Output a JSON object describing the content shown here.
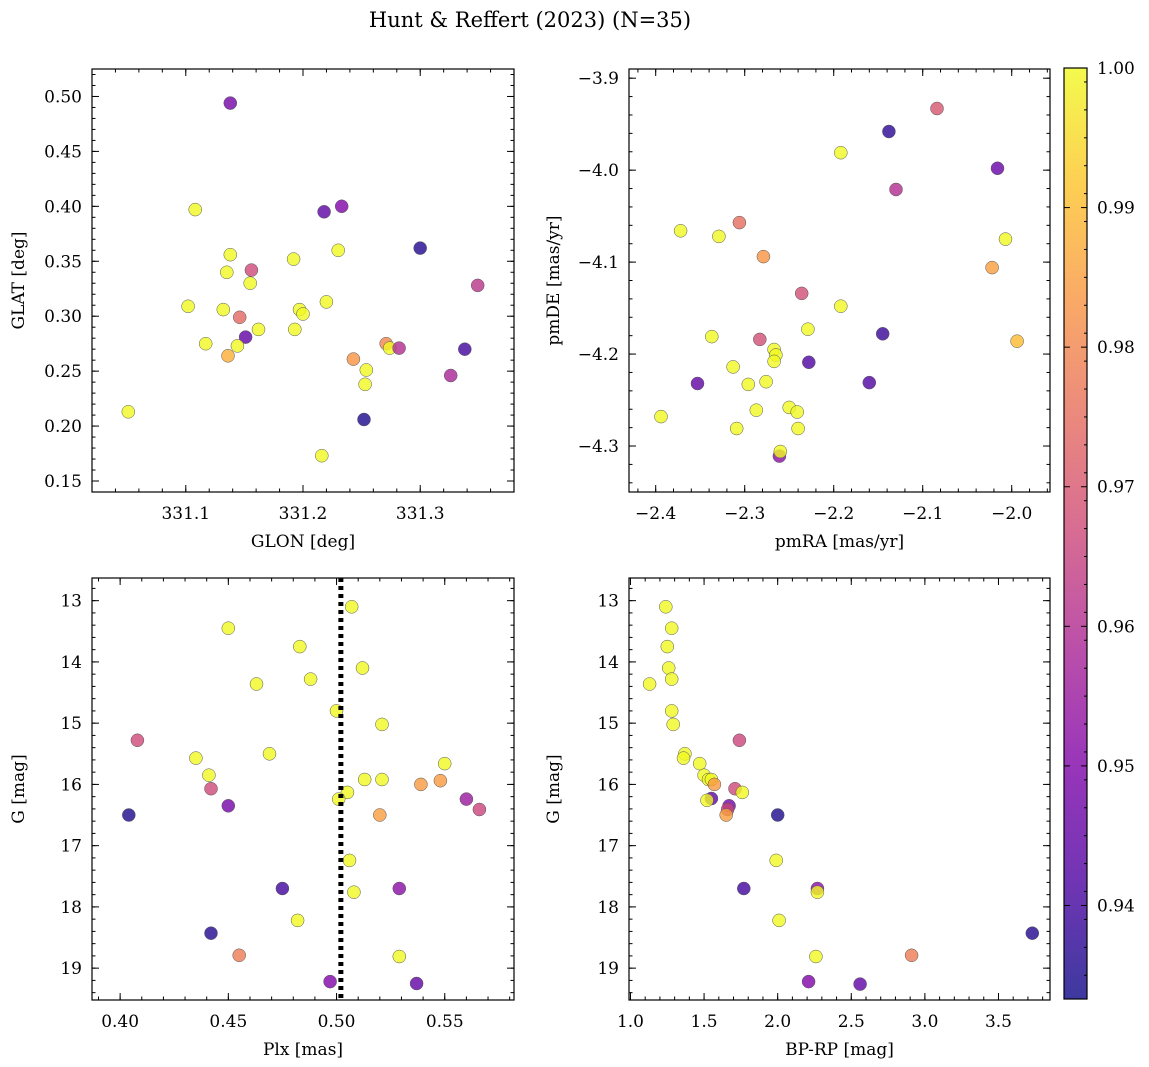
{
  "figure_title": "Hunt & Reffert (2023) (N=35)",
  "colorbar": {
    "range": [
      0.9333,
      1.0
    ],
    "ticks": [
      0.94,
      0.95,
      0.96,
      0.97,
      0.98,
      0.99,
      1.0
    ],
    "tick_labels": [
      "0.94",
      "0.95",
      "0.96",
      "0.97",
      "0.98",
      "0.99",
      "1.00"
    ],
    "colormap": "plasma (alpha 0.8)"
  },
  "chart_data": [
    {
      "type": "scatter",
      "xlabel": "GLON [deg]",
      "ylabel": "GLAT [deg]",
      "xlim": [
        331.02,
        331.38
      ],
      "ylim": [
        0.14,
        0.525
      ],
      "xticks": [
        331.1,
        331.2,
        331.3
      ],
      "xtick_labels": [
        "331.1",
        "331.2",
        "331.3"
      ],
      "yticks": [
        0.15,
        0.2,
        0.25,
        0.3,
        0.35,
        0.4,
        0.45,
        0.5
      ],
      "ytick_labels": [
        "0.15",
        "0.20",
        "0.25",
        "0.30",
        "0.35",
        "0.40",
        "0.45",
        "0.50"
      ],
      "y_inverted": false,
      "points": [
        {
          "x": 331.138,
          "y": 0.494,
          "c": 0.948
        },
        {
          "x": 331.108,
          "y": 0.397,
          "c": 1.0
        },
        {
          "x": 331.218,
          "y": 0.395,
          "c": 0.944
        },
        {
          "x": 331.233,
          "y": 0.4,
          "c": 0.95
        },
        {
          "x": 331.3,
          "y": 0.362,
          "c": 0.936
        },
        {
          "x": 331.138,
          "y": 0.356,
          "c": 1.0
        },
        {
          "x": 331.135,
          "y": 0.34,
          "c": 1.0
        },
        {
          "x": 331.156,
          "y": 0.342,
          "c": 0.967
        },
        {
          "x": 331.192,
          "y": 0.352,
          "c": 1.0
        },
        {
          "x": 331.23,
          "y": 0.36,
          "c": 1.0
        },
        {
          "x": 331.155,
          "y": 0.33,
          "c": 1.0
        },
        {
          "x": 331.349,
          "y": 0.328,
          "c": 0.962
        },
        {
          "x": 331.102,
          "y": 0.309,
          "c": 1.0
        },
        {
          "x": 331.132,
          "y": 0.306,
          "c": 1.0
        },
        {
          "x": 331.146,
          "y": 0.299,
          "c": 0.974
        },
        {
          "x": 331.197,
          "y": 0.306,
          "c": 1.0
        },
        {
          "x": 331.2,
          "y": 0.302,
          "c": 1.0
        },
        {
          "x": 331.22,
          "y": 0.313,
          "c": 1.0
        },
        {
          "x": 331.162,
          "y": 0.288,
          "c": 1.0
        },
        {
          "x": 331.193,
          "y": 0.288,
          "c": 1.0
        },
        {
          "x": 331.151,
          "y": 0.281,
          "c": 0.945
        },
        {
          "x": 331.117,
          "y": 0.275,
          "c": 1.0
        },
        {
          "x": 331.144,
          "y": 0.273,
          "c": 1.0
        },
        {
          "x": 331.136,
          "y": 0.264,
          "c": 0.988
        },
        {
          "x": 331.243,
          "y": 0.261,
          "c": 0.983
        },
        {
          "x": 331.271,
          "y": 0.275,
          "c": 0.98
        },
        {
          "x": 331.274,
          "y": 0.271,
          "c": 1.0
        },
        {
          "x": 331.282,
          "y": 0.271,
          "c": 0.96
        },
        {
          "x": 331.338,
          "y": 0.27,
          "c": 0.94
        },
        {
          "x": 331.254,
          "y": 0.251,
          "c": 1.0
        },
        {
          "x": 331.253,
          "y": 0.238,
          "c": 1.0
        },
        {
          "x": 331.326,
          "y": 0.246,
          "c": 0.958
        },
        {
          "x": 331.051,
          "y": 0.213,
          "c": 1.0
        },
        {
          "x": 331.252,
          "y": 0.206,
          "c": 0.935
        },
        {
          "x": 331.216,
          "y": 0.173,
          "c": 1.0
        }
      ]
    },
    {
      "type": "scatter",
      "xlabel": "pmRA [mas/yr]",
      "ylabel": "pmDE [mas/yr]",
      "xlim": [
        -2.43,
        -1.957
      ],
      "ylim": [
        -4.35,
        -3.89
      ],
      "xticks": [
        -2.4,
        -2.3,
        -2.2,
        -2.1,
        -2.0
      ],
      "xtick_labels": [
        "−2.4",
        "−2.3",
        "−2.2",
        "−2.1",
        "−2.0"
      ],
      "yticks": [
        -4.3,
        -4.2,
        -4.1,
        -4.0,
        -3.9
      ],
      "ytick_labels": [
        "−4.3",
        "−4.2",
        "−4.1",
        "−4.0",
        "−3.9"
      ],
      "y_inverted": false,
      "points": [
        {
          "x": -2.084,
          "y": -3.933,
          "c": 0.97
        },
        {
          "x": -2.138,
          "y": -3.958,
          "c": 0.937
        },
        {
          "x": -2.192,
          "y": -3.981,
          "c": 1.0
        },
        {
          "x": -2.016,
          "y": -3.998,
          "c": 0.946
        },
        {
          "x": -2.13,
          "y": -4.021,
          "c": 0.96
        },
        {
          "x": -2.372,
          "y": -4.066,
          "c": 1.0
        },
        {
          "x": -2.306,
          "y": -4.057,
          "c": 0.975
        },
        {
          "x": -2.329,
          "y": -4.072,
          "c": 1.0
        },
        {
          "x": -2.007,
          "y": -4.075,
          "c": 1.0
        },
        {
          "x": -2.279,
          "y": -4.094,
          "c": 0.983
        },
        {
          "x": -2.022,
          "y": -4.106,
          "c": 0.985
        },
        {
          "x": -2.236,
          "y": -4.134,
          "c": 0.968
        },
        {
          "x": -2.192,
          "y": -4.148,
          "c": 1.0
        },
        {
          "x": -2.229,
          "y": -4.173,
          "c": 1.0
        },
        {
          "x": -2.145,
          "y": -4.178,
          "c": 0.939
        },
        {
          "x": -2.337,
          "y": -4.181,
          "c": 1.0
        },
        {
          "x": -2.283,
          "y": -4.184,
          "c": 0.968
        },
        {
          "x": -1.994,
          "y": -4.186,
          "c": 0.99
        },
        {
          "x": -2.267,
          "y": -4.195,
          "c": 1.0
        },
        {
          "x": -2.265,
          "y": -4.201,
          "c": 1.0
        },
        {
          "x": -2.267,
          "y": -4.208,
          "c": 1.0
        },
        {
          "x": -2.228,
          "y": -4.209,
          "c": 0.942
        },
        {
          "x": -2.313,
          "y": -4.214,
          "c": 1.0
        },
        {
          "x": -2.353,
          "y": -4.232,
          "c": 0.945
        },
        {
          "x": -2.16,
          "y": -4.231,
          "c": 0.942
        },
        {
          "x": -2.296,
          "y": -4.233,
          "c": 1.0
        },
        {
          "x": -2.276,
          "y": -4.23,
          "c": 1.0
        },
        {
          "x": -2.287,
          "y": -4.261,
          "c": 1.0
        },
        {
          "x": -2.25,
          "y": -4.258,
          "c": 1.0
        },
        {
          "x": -2.241,
          "y": -4.263,
          "c": 1.0
        },
        {
          "x": -2.394,
          "y": -4.268,
          "c": 1.0
        },
        {
          "x": -2.309,
          "y": -4.281,
          "c": 1.0
        },
        {
          "x": -2.24,
          "y": -4.281,
          "c": 1.0
        },
        {
          "x": -2.261,
          "y": -4.311,
          "c": 0.952
        },
        {
          "x": -2.26,
          "y": -4.306,
          "c": 1.0
        }
      ]
    },
    {
      "type": "scatter",
      "xlabel": "Plx [mas]",
      "ylabel": "G [mag]",
      "xlim": [
        0.387,
        0.582
      ],
      "ylim": [
        12.63,
        19.52
      ],
      "xticks": [
        0.4,
        0.45,
        0.5,
        0.55
      ],
      "xtick_labels": [
        "0.40",
        "0.45",
        "0.50",
        "0.55"
      ],
      "yticks": [
        13,
        14,
        15,
        16,
        17,
        18,
        19
      ],
      "ytick_labels": [
        "13",
        "14",
        "15",
        "16",
        "17",
        "18",
        "19"
      ],
      "y_inverted": true,
      "vline": {
        "x": 0.502,
        "style": "dotted"
      },
      "points": [
        {
          "x": 0.507,
          "y": 13.1,
          "c": 1.0
        },
        {
          "x": 0.45,
          "y": 13.45,
          "c": 1.0
        },
        {
          "x": 0.483,
          "y": 13.75,
          "c": 1.0
        },
        {
          "x": 0.512,
          "y": 14.1,
          "c": 1.0
        },
        {
          "x": 0.488,
          "y": 14.28,
          "c": 1.0
        },
        {
          "x": 0.463,
          "y": 14.36,
          "c": 1.0
        },
        {
          "x": 0.5,
          "y": 14.8,
          "c": 1.0
        },
        {
          "x": 0.521,
          "y": 15.02,
          "c": 1.0
        },
        {
          "x": 0.408,
          "y": 15.28,
          "c": 0.967
        },
        {
          "x": 0.469,
          "y": 15.5,
          "c": 1.0
        },
        {
          "x": 0.435,
          "y": 15.57,
          "c": 1.0
        },
        {
          "x": 0.55,
          "y": 15.66,
          "c": 1.0
        },
        {
          "x": 0.441,
          "y": 15.85,
          "c": 1.0
        },
        {
          "x": 0.513,
          "y": 15.92,
          "c": 1.0
        },
        {
          "x": 0.521,
          "y": 15.92,
          "c": 1.0
        },
        {
          "x": 0.548,
          "y": 15.94,
          "c": 0.984
        },
        {
          "x": 0.539,
          "y": 16.0,
          "c": 0.984
        },
        {
          "x": 0.442,
          "y": 16.07,
          "c": 0.967
        },
        {
          "x": 0.505,
          "y": 16.13,
          "c": 1.0
        },
        {
          "x": 0.501,
          "y": 16.24,
          "c": 1.0
        },
        {
          "x": 0.56,
          "y": 16.24,
          "c": 0.955
        },
        {
          "x": 0.45,
          "y": 16.35,
          "c": 0.948
        },
        {
          "x": 0.566,
          "y": 16.41,
          "c": 0.966
        },
        {
          "x": 0.404,
          "y": 16.5,
          "c": 0.935
        },
        {
          "x": 0.52,
          "y": 16.5,
          "c": 0.985
        },
        {
          "x": 0.506,
          "y": 17.24,
          "c": 1.0
        },
        {
          "x": 0.475,
          "y": 17.7,
          "c": 0.94
        },
        {
          "x": 0.529,
          "y": 17.7,
          "c": 0.952
        },
        {
          "x": 0.508,
          "y": 17.76,
          "c": 1.0
        },
        {
          "x": 0.482,
          "y": 18.22,
          "c": 1.0
        },
        {
          "x": 0.442,
          "y": 18.43,
          "c": 0.936
        },
        {
          "x": 0.455,
          "y": 18.79,
          "c": 0.978
        },
        {
          "x": 0.529,
          "y": 18.81,
          "c": 1.0
        },
        {
          "x": 0.497,
          "y": 19.22,
          "c": 0.95
        },
        {
          "x": 0.537,
          "y": 19.25,
          "c": 0.945
        }
      ]
    },
    {
      "type": "scatter",
      "xlabel": "BP-RP [mag]",
      "ylabel": "G [mag]",
      "xlim": [
        0.99,
        3.85
      ],
      "ylim": [
        12.63,
        19.52
      ],
      "xticks": [
        1.0,
        1.5,
        2.0,
        2.5,
        3.0,
        3.5
      ],
      "xtick_labels": [
        "1.0",
        "1.5",
        "2.0",
        "2.5",
        "3.0",
        "3.5"
      ],
      "yticks": [
        13,
        14,
        15,
        16,
        17,
        18,
        19
      ],
      "ytick_labels": [
        "13",
        "14",
        "15",
        "16",
        "17",
        "18",
        "19"
      ],
      "y_inverted": true,
      "points": [
        {
          "x": 1.24,
          "y": 13.1,
          "c": 1.0
        },
        {
          "x": 1.28,
          "y": 13.45,
          "c": 1.0
        },
        {
          "x": 1.25,
          "y": 13.75,
          "c": 1.0
        },
        {
          "x": 1.26,
          "y": 14.1,
          "c": 1.0
        },
        {
          "x": 1.28,
          "y": 14.28,
          "c": 1.0
        },
        {
          "x": 1.13,
          "y": 14.36,
          "c": 1.0
        },
        {
          "x": 1.28,
          "y": 14.8,
          "c": 1.0
        },
        {
          "x": 1.29,
          "y": 15.02,
          "c": 1.0
        },
        {
          "x": 1.74,
          "y": 15.28,
          "c": 0.966
        },
        {
          "x": 1.37,
          "y": 15.5,
          "c": 1.0
        },
        {
          "x": 1.36,
          "y": 15.57,
          "c": 1.0
        },
        {
          "x": 1.47,
          "y": 15.66,
          "c": 1.0
        },
        {
          "x": 1.5,
          "y": 15.85,
          "c": 1.0
        },
        {
          "x": 1.53,
          "y": 15.92,
          "c": 1.0
        },
        {
          "x": 1.55,
          "y": 15.92,
          "c": 1.0
        },
        {
          "x": 1.57,
          "y": 16.0,
          "c": 0.984
        },
        {
          "x": 1.71,
          "y": 16.07,
          "c": 0.967
        },
        {
          "x": 1.76,
          "y": 16.13,
          "c": 1.0
        },
        {
          "x": 1.55,
          "y": 16.23,
          "c": 0.945
        },
        {
          "x": 1.52,
          "y": 16.26,
          "c": 1.0
        },
        {
          "x": 1.67,
          "y": 16.35,
          "c": 0.948
        },
        {
          "x": 1.66,
          "y": 16.41,
          "c": 0.966
        },
        {
          "x": 1.65,
          "y": 16.5,
          "c": 0.985
        },
        {
          "x": 2.0,
          "y": 16.5,
          "c": 0.935
        },
        {
          "x": 1.99,
          "y": 17.24,
          "c": 1.0
        },
        {
          "x": 1.77,
          "y": 17.7,
          "c": 0.94
        },
        {
          "x": 2.27,
          "y": 17.7,
          "c": 0.952
        },
        {
          "x": 2.27,
          "y": 17.76,
          "c": 1.0
        },
        {
          "x": 2.01,
          "y": 18.22,
          "c": 1.0
        },
        {
          "x": 3.73,
          "y": 18.43,
          "c": 0.936
        },
        {
          "x": 2.91,
          "y": 18.79,
          "c": 0.978
        },
        {
          "x": 2.26,
          "y": 18.81,
          "c": 1.0
        },
        {
          "x": 2.21,
          "y": 19.22,
          "c": 0.95
        },
        {
          "x": 2.56,
          "y": 19.26,
          "c": 0.945
        }
      ]
    }
  ]
}
